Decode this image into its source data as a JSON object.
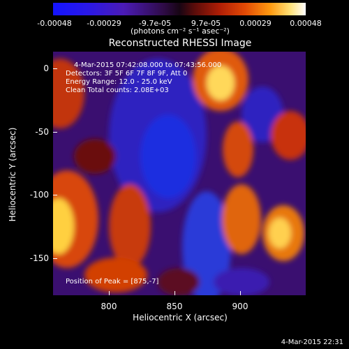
{
  "colorbar": {
    "tick_labels": [
      "-0.00048",
      "-0.00029",
      "-9.7e-05",
      "9.7e-05",
      "0.00029",
      "0.00048"
    ],
    "units": "(photons cm⁻² s⁻¹ asec⁻²)"
  },
  "title": "Reconstructed RHESSI Image",
  "annotations": {
    "time": "4-Mar-2015 07:42:08.000 to 07:43:56.000",
    "detectors": "Detectors: 3F 5F 6F 7F 8F 9F, Att 0",
    "energy": "Energy Range: 12.0 - 25.0 keV",
    "clean": "Clean     Total counts: 2.08E+03",
    "peak": "Position of Peak = [875,-7]"
  },
  "axes": {
    "xlabel": "Heliocentric X (arcsec)",
    "ylabel": "Heliocentric Y (arcsec)",
    "xticks": [
      "800",
      "850",
      "900"
    ],
    "yticks": [
      "0",
      "-50",
      "-100",
      "-150"
    ]
  },
  "footer": {
    "date": "4-Mar-2015 22:31"
  }
}
